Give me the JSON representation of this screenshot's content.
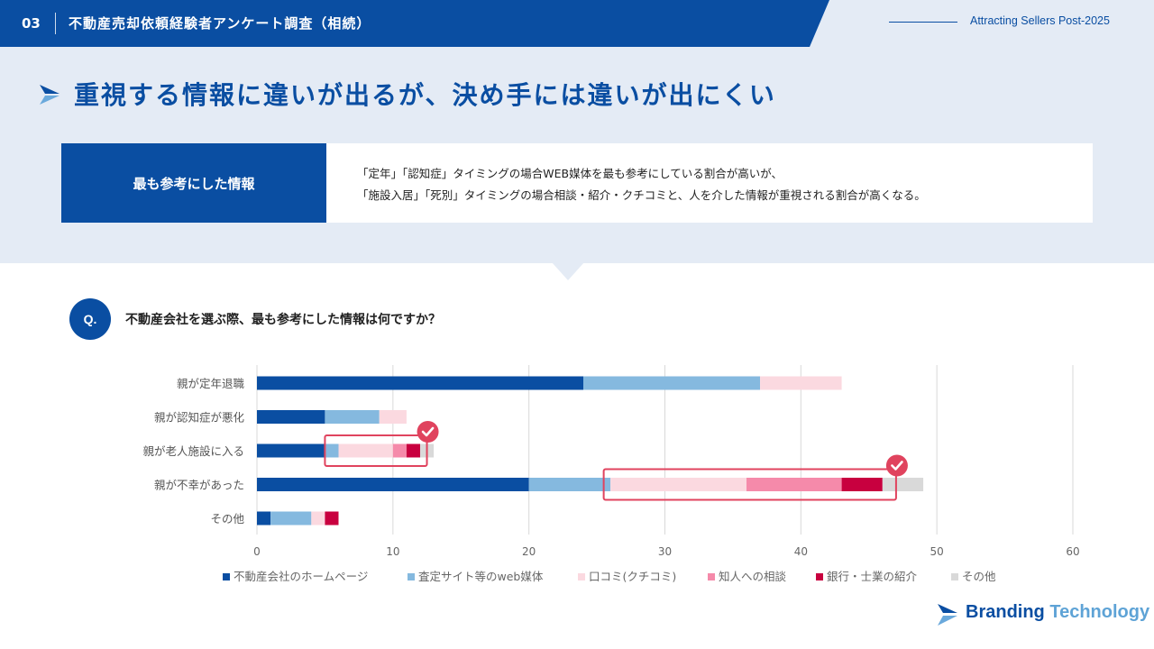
{
  "header": {
    "number": "03",
    "title": "不動産売却依頼経験者アンケート調査（相続）",
    "tagline": "Attracting Sellers Post-2025"
  },
  "main_title": "重視する情報に違いが出るが、決め手には違いが出にくい",
  "info": {
    "label": "最も参考にした情報",
    "line1": "「定年」「認知症」タイミングの場合WEB媒体を最も参考にしている割合が高いが、",
    "line2": "「施設入居」「死別」タイミングの場合相談・紹介・クチコミと、人を介した情報が重視される割合が高くなる。"
  },
  "question": {
    "badge": "Q.",
    "text": "不動産会社を選ぶ際、最も参考にした情報は何ですか？"
  },
  "brand": {
    "name_part1": "Branding",
    "name_part2": "Technology"
  },
  "colors": {
    "primary": "#0a4ea2",
    "band": "#e4ebf5",
    "highlight": "#e0435e"
  },
  "chart_data": {
    "type": "bar",
    "orientation": "horizontal",
    "stacked": true,
    "categories": [
      "親が定年退職",
      "親が認知症が悪化",
      "親が老人施設に入る",
      "親が不幸があった",
      "その他"
    ],
    "series": [
      {
        "name": "不動産会社のホームページ",
        "color": "#0a4ea2",
        "values": [
          24,
          5,
          5,
          20,
          1
        ]
      },
      {
        "name": "査定サイト等のweb媒体",
        "color": "#85b9df",
        "values": [
          13,
          4,
          1,
          6,
          3
        ]
      },
      {
        "name": "口コミ(クチコミ)",
        "color": "#fbd9e0",
        "values": [
          6,
          2,
          4,
          10,
          1
        ]
      },
      {
        "name": "知人への相談",
        "color": "#f58aaa",
        "values": [
          0,
          0,
          1,
          7,
          0
        ]
      },
      {
        "name": "銀行・士業の紹介",
        "color": "#c8003f",
        "values": [
          0,
          0,
          1,
          3,
          1
        ]
      },
      {
        "name": "その他",
        "color": "#d9d9d9",
        "values": [
          0,
          0,
          1,
          3,
          0
        ]
      }
    ],
    "xlim": [
      0,
      60
    ],
    "xticks": [
      0,
      10,
      20,
      30,
      40,
      50,
      60
    ],
    "grid": true,
    "legend": "bottom",
    "highlights": [
      {
        "category_index": 2,
        "from": 5,
        "to": 12.5
      },
      {
        "category_index": 3,
        "from": 25.5,
        "to": 47
      }
    ]
  }
}
